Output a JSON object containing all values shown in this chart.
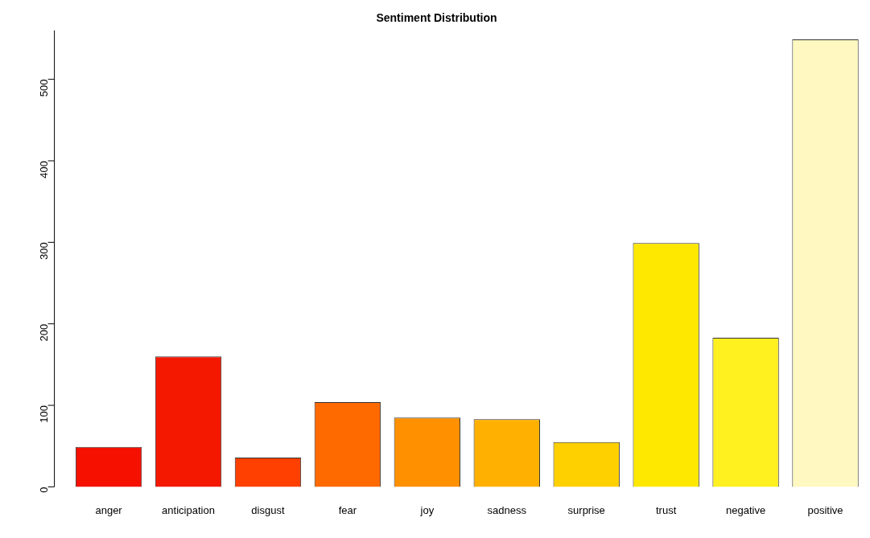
{
  "chart_data": {
    "type": "bar",
    "title": "Sentiment Distribution",
    "categories": [
      "anger",
      "anticipation",
      "disgust",
      "fear",
      "joy",
      "sadness",
      "surprise",
      "trust",
      "negative",
      "positive"
    ],
    "values": [
      49,
      160,
      36,
      104,
      85,
      83,
      55,
      299,
      183,
      549
    ],
    "colors": [
      "#f51000",
      "#f51800",
      "#ff4000",
      "#ff6a00",
      "#ff9000",
      "#ffb000",
      "#ffd000",
      "#ffe800",
      "#fff020",
      "#fff8c0"
    ],
    "ylim": [
      0,
      560
    ],
    "yticks": [
      0,
      100,
      200,
      300,
      400,
      500
    ],
    "grid": false,
    "legend": false
  }
}
